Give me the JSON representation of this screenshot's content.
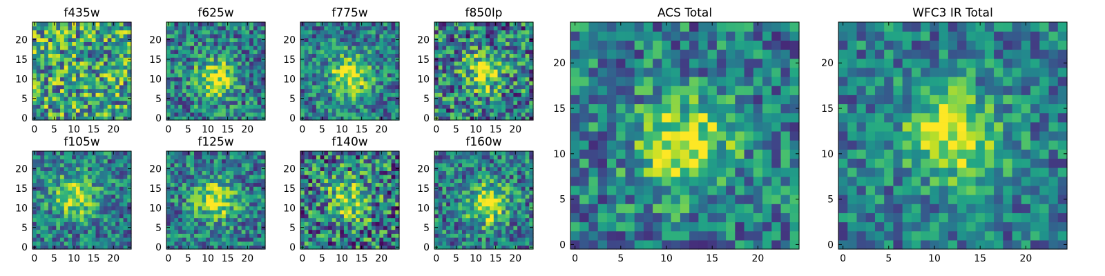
{
  "chart_data": [
    {
      "type": "heatmap",
      "title": "f435w",
      "xticks": [
        "0",
        "5",
        "10",
        "15",
        "20"
      ],
      "yticks": [
        "0",
        "5",
        "10",
        "15",
        "20"
      ],
      "xlim": [
        -0.5,
        24.5
      ],
      "ylim": [
        -0.5,
        24.5
      ],
      "colormap": "viridis",
      "source_peak": null,
      "peak": 0.82,
      "noise": 0.5,
      "seed": 11
    },
    {
      "type": "heatmap",
      "title": "f625w",
      "xticks": [
        "0",
        "5",
        "10",
        "15",
        "20"
      ],
      "yticks": [
        "0",
        "5",
        "10",
        "15",
        "20"
      ],
      "xlim": [
        -0.5,
        24.5
      ],
      "ylim": [
        -0.5,
        24.5
      ],
      "colormap": "viridis",
      "source_peak": [
        12,
        10
      ],
      "peak": 0.95,
      "noise": 0.32,
      "seed": 23
    },
    {
      "type": "heatmap",
      "title": "f775w",
      "xticks": [
        "0",
        "5",
        "10",
        "15",
        "20"
      ],
      "yticks": [
        "0",
        "5",
        "10",
        "15",
        "20"
      ],
      "xlim": [
        -0.5,
        24.5
      ],
      "ylim": [
        -0.5,
        24.5
      ],
      "colormap": "viridis",
      "source_peak": [
        12,
        11
      ],
      "peak": 0.97,
      "noise": 0.3,
      "seed": 37
    },
    {
      "type": "heatmap",
      "title": "f850lp",
      "xticks": [
        "0",
        "5",
        "10",
        "15",
        "20"
      ],
      "yticks": [
        "0",
        "5",
        "10",
        "15",
        "20"
      ],
      "xlim": [
        -0.5,
        24.5
      ],
      "ylim": [
        -0.5,
        24.5
      ],
      "colormap": "viridis",
      "source_peak": [
        12,
        12
      ],
      "peak": 0.9,
      "noise": 0.4,
      "seed": 41
    },
    {
      "type": "heatmap",
      "title": "f105w",
      "xticks": [
        "0",
        "5",
        "10",
        "15",
        "20"
      ],
      "yticks": [
        "0",
        "5",
        "10",
        "15",
        "20"
      ],
      "xlim": [
        -0.5,
        24.5
      ],
      "ylim": [
        -0.5,
        24.5
      ],
      "colormap": "viridis",
      "source_peak": [
        10,
        13
      ],
      "peak": 0.95,
      "noise": 0.3,
      "seed": 53
    },
    {
      "type": "heatmap",
      "title": "f125w",
      "xticks": [
        "0",
        "5",
        "10",
        "15",
        "20"
      ],
      "yticks": [
        "0",
        "5",
        "10",
        "15",
        "20"
      ],
      "xlim": [
        -0.5,
        24.5
      ],
      "ylim": [
        -0.5,
        24.5
      ],
      "colormap": "viridis",
      "source_peak": [
        12,
        12
      ],
      "peak": 0.95,
      "noise": 0.3,
      "seed": 67
    },
    {
      "type": "heatmap",
      "title": "f140w",
      "xticks": [
        "0",
        "5",
        "10",
        "15",
        "20"
      ],
      "yticks": [
        "0",
        "5",
        "10",
        "15",
        "20"
      ],
      "xlim": [
        -0.5,
        24.5
      ],
      "ylim": [
        -0.5,
        24.5
      ],
      "colormap": "viridis",
      "source_peak": [
        12,
        12
      ],
      "peak": 0.88,
      "noise": 0.42,
      "seed": 71
    },
    {
      "type": "heatmap",
      "title": "f160w",
      "xticks": [
        "0",
        "5",
        "10",
        "15",
        "20"
      ],
      "yticks": [
        "0",
        "5",
        "10",
        "15",
        "20"
      ],
      "xlim": [
        -0.5,
        24.5
      ],
      "ylim": [
        -0.5,
        24.5
      ],
      "colormap": "viridis",
      "source_peak": [
        13,
        11
      ],
      "peak": 0.95,
      "noise": 0.32,
      "seed": 83
    },
    {
      "type": "heatmap",
      "title": "ACS Total",
      "xticks": [
        "0",
        "5",
        "10",
        "15",
        "20"
      ],
      "yticks": [
        "0",
        "5",
        "10",
        "15",
        "20"
      ],
      "xlim": [
        -0.5,
        24.5
      ],
      "ylim": [
        -0.5,
        24.5
      ],
      "colormap": "viridis",
      "source_peak": [
        12,
        11
      ],
      "peak": 0.98,
      "noise": 0.3,
      "seed": 97
    },
    {
      "type": "heatmap",
      "title": "WFC3 IR Total",
      "xticks": [
        "0",
        "5",
        "10",
        "15",
        "20"
      ],
      "yticks": [
        "0",
        "5",
        "10",
        "15",
        "20"
      ],
      "xlim": [
        -0.5,
        24.5
      ],
      "ylim": [
        -0.5,
        24.5
      ],
      "colormap": "viridis",
      "source_peak": [
        12,
        12
      ],
      "peak": 0.97,
      "noise": 0.26,
      "seed": 101
    }
  ]
}
